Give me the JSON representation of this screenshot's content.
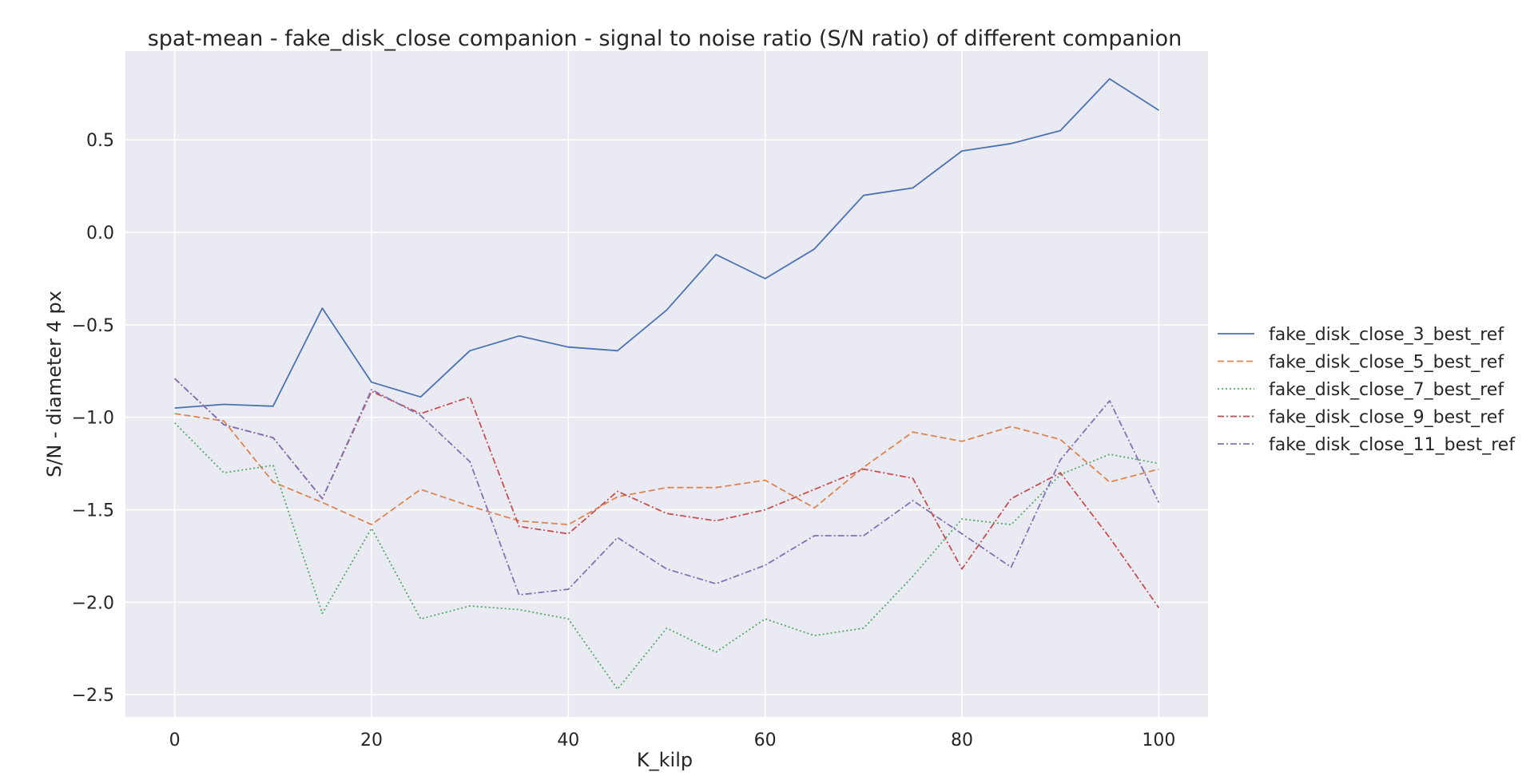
{
  "chart_data": {
    "type": "line",
    "title": "spat-mean - fake_disk_close companion - signal to noise ratio (S/N ratio) of different companion",
    "xlabel": "K_kilp",
    "ylabel": "S/N - diameter 4 px",
    "xlim": [
      -5,
      105
    ],
    "ylim": [
      -2.62,
      0.98
    ],
    "xticks": [
      0,
      20,
      40,
      60,
      80,
      100
    ],
    "yticks": [
      -2.5,
      -2.0,
      -1.5,
      -1.0,
      -0.5,
      0.0,
      0.5
    ],
    "xtick_labels": [
      "0",
      "20",
      "40",
      "60",
      "80",
      "100"
    ],
    "ytick_labels": [
      "−2.5",
      "−2.0",
      "−1.5",
      "−1.0",
      "−0.5",
      "0.0",
      "0.5"
    ],
    "grid": true,
    "legend_position": "right-outside",
    "x": [
      0,
      5,
      10,
      15,
      20,
      25,
      30,
      35,
      40,
      45,
      50,
      55,
      60,
      65,
      70,
      75,
      80,
      85,
      90,
      95,
      100
    ],
    "series": [
      {
        "name": "fake_disk_close_3_best_ref",
        "color": "#4c72b0",
        "dash": "solid",
        "values": [
          -0.95,
          -0.93,
          -0.94,
          -0.41,
          -0.81,
          -0.89,
          -0.64,
          -0.56,
          -0.62,
          -0.64,
          -0.42,
          -0.12,
          -0.25,
          -0.09,
          0.2,
          0.24,
          0.44,
          0.48,
          0.55,
          0.83,
          0.66
        ]
      },
      {
        "name": "fake_disk_close_5_best_ref",
        "color": "#dd8452",
        "dash": "dashed",
        "values": [
          -0.98,
          -1.02,
          -1.35,
          -1.46,
          -1.58,
          -1.39,
          -1.48,
          -1.56,
          -1.58,
          -1.43,
          -1.38,
          -1.38,
          -1.34,
          -1.49,
          -1.27,
          -1.08,
          -1.13,
          -1.05,
          -1.12,
          -1.35,
          -1.28
        ]
      },
      {
        "name": "fake_disk_close_7_best_ref",
        "color": "#55a868",
        "dash": "dotted",
        "values": [
          -1.03,
          -1.3,
          -1.26,
          -2.06,
          -1.6,
          -2.09,
          -2.02,
          -2.04,
          -2.09,
          -2.47,
          -2.14,
          -2.27,
          -2.09,
          -2.18,
          -2.14,
          -1.86,
          -1.55,
          -1.58,
          -1.31,
          -1.2,
          -1.25
        ]
      },
      {
        "name": "fake_disk_close_9_best_ref",
        "color": "#c44e52",
        "dash": "dashdot",
        "values": [
          -0.79,
          -1.04,
          -1.11,
          -1.44,
          -0.86,
          -0.98,
          -0.89,
          -1.59,
          -1.63,
          -1.4,
          -1.52,
          -1.56,
          -1.5,
          -1.39,
          -1.28,
          -1.33,
          -1.82,
          -1.44,
          -1.3,
          -1.65,
          -2.03
        ]
      },
      {
        "name": "fake_disk_close_11_best_ref",
        "color": "#8172b3",
        "dash": "dashdot",
        "values": [
          -0.79,
          -1.04,
          -1.11,
          -1.44,
          -0.85,
          -0.99,
          -1.24,
          -1.96,
          -1.93,
          -1.65,
          -1.82,
          -1.9,
          -1.8,
          -1.64,
          -1.64,
          -1.45,
          -1.63,
          -1.81,
          -1.23,
          -0.91,
          -1.46
        ]
      }
    ]
  }
}
